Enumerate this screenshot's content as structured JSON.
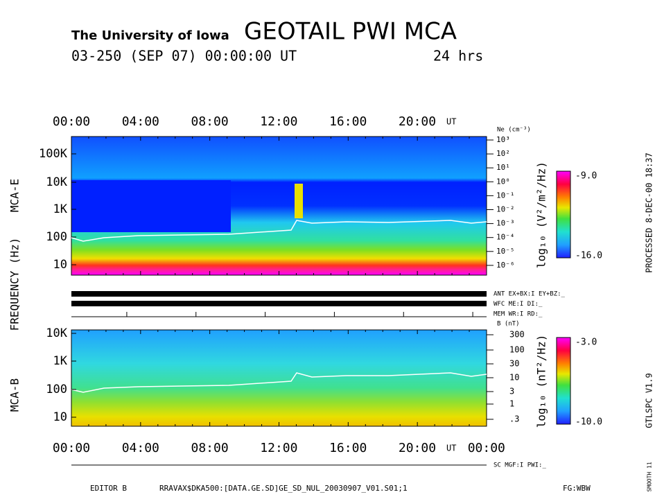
{
  "header": {
    "institution": "The University of Iowa",
    "title": "GEOTAIL PWI MCA",
    "date": "03-250 (SEP 07) 00:00:00 UT",
    "span": "24 hrs"
  },
  "time_labels": [
    "00:00",
    "04:00",
    "08:00",
    "12:00",
    "16:00",
    "20:00",
    "UT"
  ],
  "bottom_time_labels": [
    "00:00",
    "04:00",
    "08:00",
    "12:00",
    "16:00",
    "20:00",
    "UT",
    "00:00"
  ],
  "left_labels": {
    "frequency": "FREQUENCY (Hz)",
    "mca_e": "MCA-E",
    "mca_b": "MCA-B"
  },
  "mca_e": {
    "freq_labels": [
      "100K",
      "10K",
      "1K",
      "100",
      "10"
    ],
    "density_title": "Ne (cm⁻³)",
    "density_labels": [
      "10³",
      "10²",
      "10¹",
      "10⁰",
      "10⁻¹",
      "10⁻²",
      "10⁻³",
      "10⁻⁴",
      "10⁻⁵",
      "10⁻⁶"
    ],
    "colorbar_label": "log₁₀ (V²/m²/Hz)",
    "colorbar_max": "-9.0",
    "colorbar_min": "-16.0"
  },
  "status": [
    "ANT EX+BX:I EY+BZ:_",
    "WFC ME:I   DI:_",
    "MEM WR:I   RD:_"
  ],
  "mca_b": {
    "freq_labels": [
      "10K",
      "1K",
      "100",
      "10"
    ],
    "field_title": "B (nT)",
    "field_labels": [
      "300",
      "100",
      "30",
      "10",
      "3",
      "1",
      ".3"
    ],
    "colorbar_label": "log₁₀ (nT²/Hz)",
    "colorbar_max": "-3.0",
    "colorbar_min": "-10.0"
  },
  "sc_status": "SC MGF:I   PWI:_",
  "footer": {
    "editor": "EDITOR B",
    "file": "RRAVAX$DKA500:[DATA.GE.SD]GE_SD_NUL_20030907_V01.S01;1",
    "fg": "FG:WBW"
  },
  "side": {
    "processed": "PROCESSED   8-DEC-00   18:37",
    "version": "GTLSPC   V1.9",
    "smooth": "SMOOTH 11"
  }
}
